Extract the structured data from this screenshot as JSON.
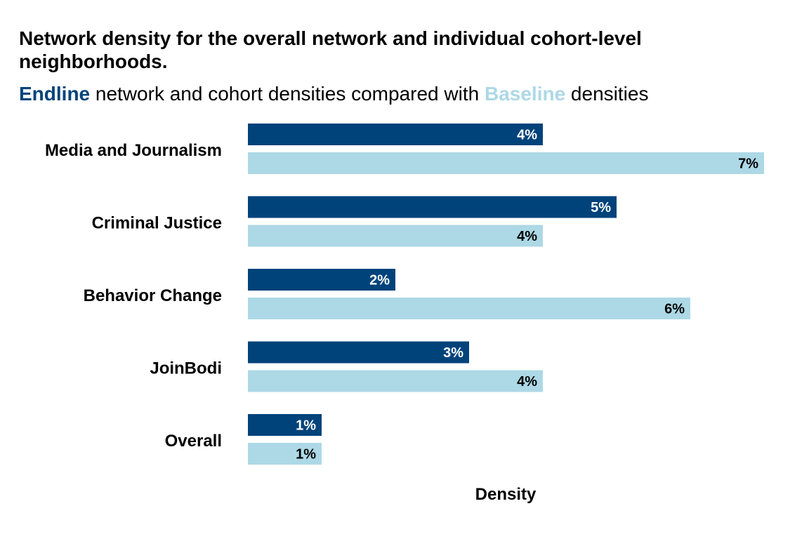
{
  "title": "Network density for the overall network and individual cohort-level neighborhoods.",
  "subtitle": {
    "endline_word": "Endline",
    "middle_text": " network and cohort densities compared with ",
    "baseline_word": "Baseline",
    "end_text": " densities"
  },
  "colors": {
    "endline": "#00437a",
    "baseline": "#add8e6",
    "endline_label": "#ffffff",
    "baseline_label": "#000000"
  },
  "chart_data": {
    "type": "bar",
    "orientation": "horizontal",
    "categories": [
      "Media and Journalism",
      "Criminal Justice",
      "Behavior Change",
      "JoinBodi",
      "Overall"
    ],
    "series": [
      {
        "name": "Endline",
        "values": [
          4,
          5,
          2,
          3,
          1
        ],
        "labels": [
          "4%",
          "5%",
          "2%",
          "3%",
          "1%"
        ]
      },
      {
        "name": "Baseline",
        "values": [
          7,
          4,
          6,
          4,
          1
        ],
        "labels": [
          "7%",
          "4%",
          "6%",
          "4%",
          "1%"
        ]
      }
    ],
    "xlabel": "Density",
    "ylabel": "",
    "xlim": [
      0,
      7
    ],
    "grid": false,
    "legend": "subtitle"
  }
}
